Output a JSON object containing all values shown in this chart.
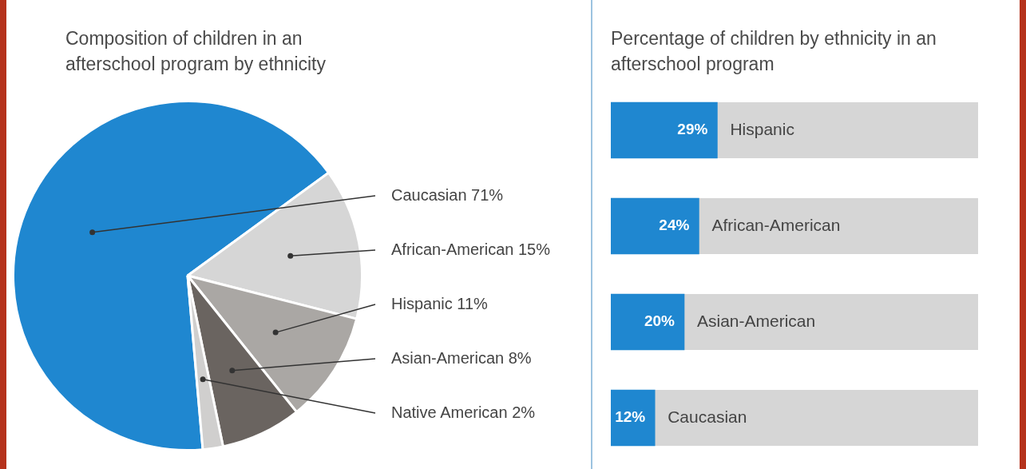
{
  "chart_data": [
    {
      "type": "pie",
      "title": "Composition of children in an afterschool program by ethnicity",
      "categories": [
        "Caucasian",
        "African-American",
        "Hispanic",
        "Asian-American",
        "Native American"
      ],
      "values": [
        71,
        15,
        11,
        8,
        2
      ],
      "value_labels": [
        "71%",
        "15%",
        "11%",
        "8%",
        "2%"
      ],
      "colors": [
        "#1f87d0",
        "#d6d6d6",
        "#aaa7a4",
        "#6a6460",
        "#d0cfce"
      ],
      "legend": false
    },
    {
      "type": "bar",
      "orientation": "horizontal",
      "title": "Percentage of children by ethnicity in an afterschool program",
      "categories": [
        "Hispanic",
        "African-American",
        "Asian-American",
        "Caucasian"
      ],
      "values": [
        29,
        24,
        20,
        12
      ],
      "value_labels": [
        "29%",
        "24%",
        "20%",
        "12%"
      ],
      "color": "#1f87d0",
      "xlim": [
        0,
        100
      ],
      "tick_labels": false,
      "legend": false
    }
  ]
}
